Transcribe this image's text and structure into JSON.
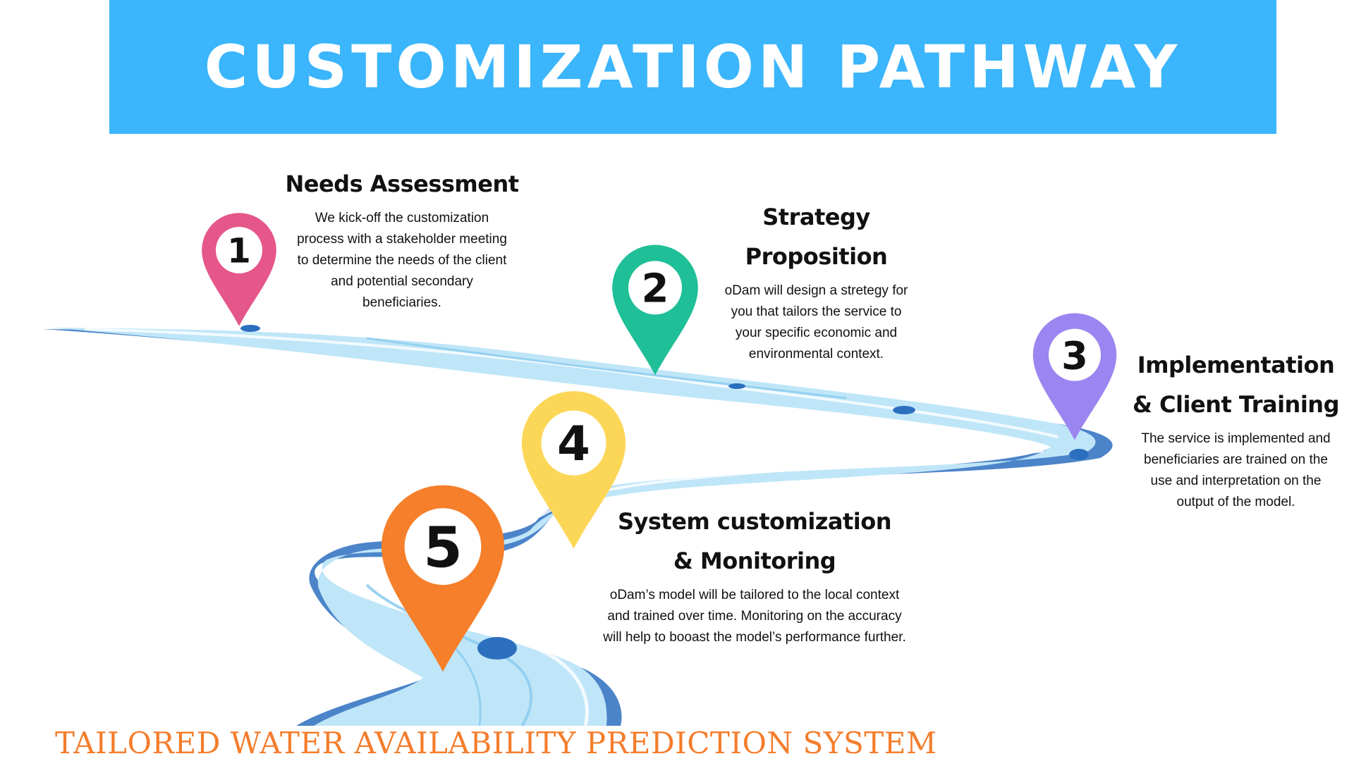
{
  "header": {
    "title": "CUSTOMIZATION PATHWAY",
    "background_color": "#3bb5fb"
  },
  "steps": [
    {
      "number": "1",
      "title_lines": [
        "Needs Assessment"
      ],
      "description_lines": [
        "We kick-off the customization",
        "process with a stakeholder meeting",
        "to determine the needs of the client",
        "and potential secondary",
        "beneficiaries."
      ],
      "color": "#e5568a",
      "icon": "map-pin-icon"
    },
    {
      "number": "2",
      "title_lines": [
        "Strategy",
        "Proposition"
      ],
      "description_lines": [
        "oDam will design a stretegy for",
        "you that tailors the service to",
        "your specific economic and",
        "environmental context."
      ],
      "color": "#1fbf97",
      "icon": "map-pin-icon"
    },
    {
      "number": "3",
      "title_lines": [
        "Implementation",
        "& Client Training"
      ],
      "description_lines": [
        "The service is implemented and",
        "beneficiaries are trained on the",
        "use and interpretation on the",
        "output of the model."
      ],
      "color": "#9b85f0",
      "icon": "map-pin-icon"
    },
    {
      "number": "4",
      "title_lines": [
        "System customization",
        "& Monitoring"
      ],
      "description_lines": [
        "oDam’s model will be tailored to the local context",
        "and trained over time. Monitoring on the accuracy",
        "will help to booast the model’s performance further."
      ],
      "color": "#fcd757",
      "icon": "map-pin-icon"
    },
    {
      "number": "5",
      "title_lines": [],
      "description_lines": [],
      "color": "#f57f2a",
      "icon": "map-pin-icon"
    }
  ],
  "river": {
    "water_color": "#bfe6f8",
    "highlight_color": "#dff3fc",
    "edge_color": "#2d6fbf",
    "icon": "river-path-illustration"
  },
  "footer": {
    "tagline": "TAILORED WATER AVAILABILITY PREDICTION SYSTEM",
    "color": "#f47d2c"
  }
}
